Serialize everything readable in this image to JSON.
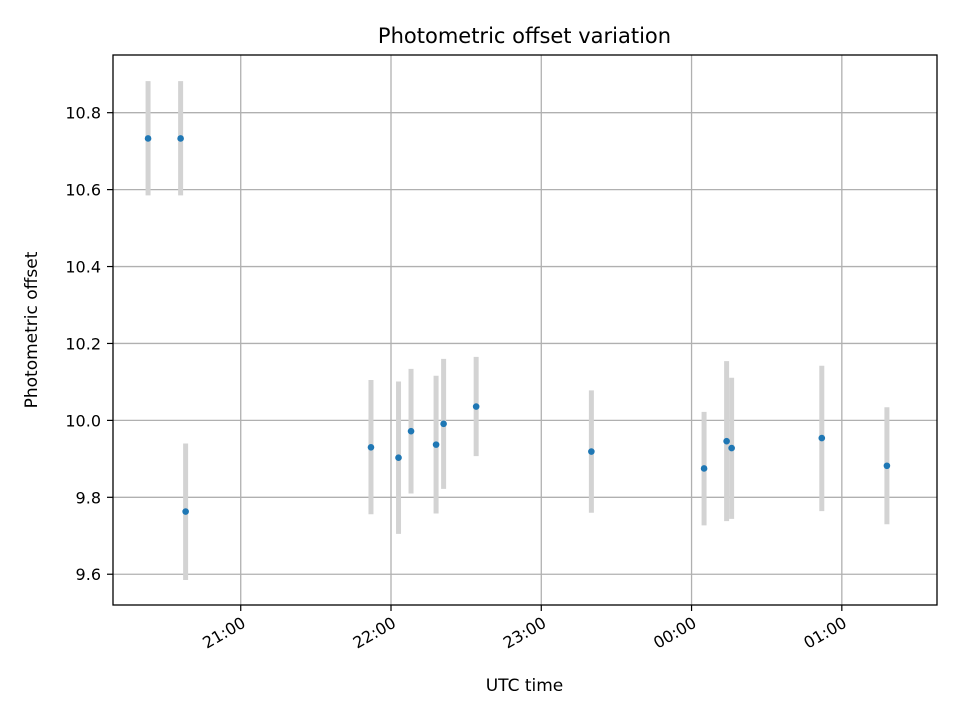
{
  "chart_data": {
    "type": "scatter",
    "title": "Photometric offset variation",
    "xlabel": "UTC time",
    "ylabel": "Photometric offset",
    "x_unit": "time of day (UTC), HH:MM",
    "xlim": [
      "20:09",
      "01:38"
    ],
    "xticks": [
      {
        "t": "21:00",
        "label": "21:00"
      },
      {
        "t": "22:00",
        "label": "22:00"
      },
      {
        "t": "23:00",
        "label": "23:00"
      },
      {
        "t": "00:00",
        "label": "00:00"
      },
      {
        "t": "01:00",
        "label": "01:00"
      }
    ],
    "ylim": [
      9.52,
      10.95
    ],
    "yticks": [
      9.6,
      9.8,
      10.0,
      10.2,
      10.4,
      10.6,
      10.8
    ],
    "ytick_labels": [
      "9.6",
      "9.8",
      "10.0",
      "10.2",
      "10.4",
      "10.6",
      "10.8"
    ],
    "grid": true,
    "marker_color": "#1f77b4",
    "errorbar_color": "#d3d3d3",
    "points": [
      {
        "t": "20:23",
        "y": 10.733,
        "ylo": 10.585,
        "yhi": 10.882
      },
      {
        "t": "20:36",
        "y": 10.733,
        "ylo": 10.585,
        "yhi": 10.882
      },
      {
        "t": "20:38",
        "y": 9.763,
        "ylo": 9.585,
        "yhi": 9.94
      },
      {
        "t": "21:52",
        "y": 9.93,
        "ylo": 9.756,
        "yhi": 10.105
      },
      {
        "t": "22:03",
        "y": 9.903,
        "ylo": 9.705,
        "yhi": 10.101
      },
      {
        "t": "22:08",
        "y": 9.972,
        "ylo": 9.81,
        "yhi": 10.134
      },
      {
        "t": "22:18",
        "y": 9.937,
        "ylo": 9.758,
        "yhi": 10.116
      },
      {
        "t": "22:21",
        "y": 9.991,
        "ylo": 9.822,
        "yhi": 10.16
      },
      {
        "t": "22:34",
        "y": 10.036,
        "ylo": 9.907,
        "yhi": 10.165
      },
      {
        "t": "23:20",
        "y": 9.919,
        "ylo": 9.76,
        "yhi": 10.078
      },
      {
        "t": "00:05",
        "y": 9.875,
        "ylo": 9.727,
        "yhi": 10.022
      },
      {
        "t": "00:14",
        "y": 9.946,
        "ylo": 9.738,
        "yhi": 10.154
      },
      {
        "t": "00:16",
        "y": 9.928,
        "ylo": 9.744,
        "yhi": 10.111
      },
      {
        "t": "00:52",
        "y": 9.954,
        "ylo": 9.764,
        "yhi": 10.142
      },
      {
        "t": "01:18",
        "y": 9.882,
        "ylo": 9.73,
        "yhi": 10.034
      }
    ]
  }
}
